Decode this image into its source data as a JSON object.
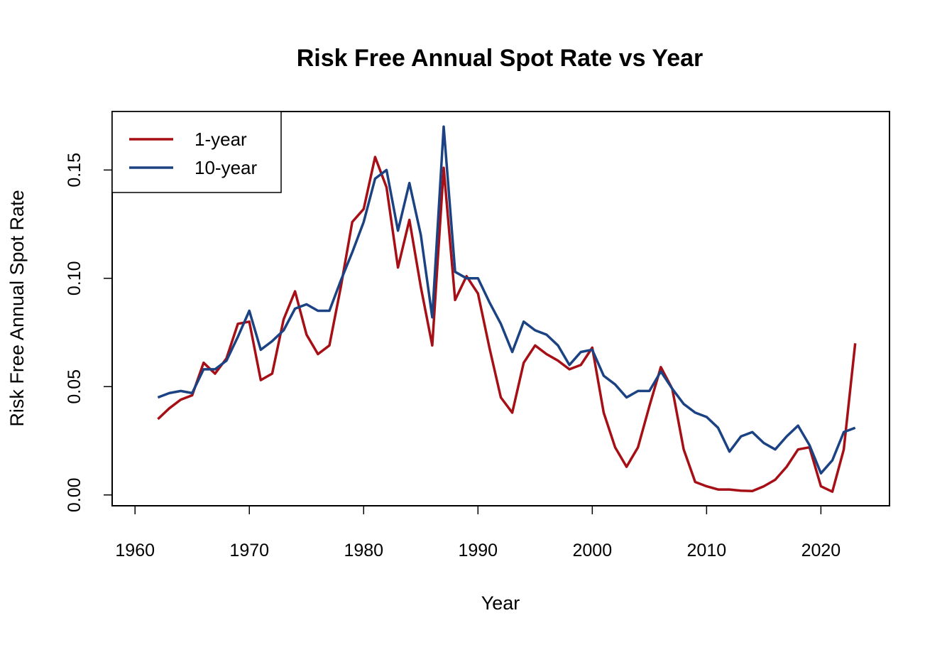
{
  "chart_data": {
    "type": "line",
    "title": "Risk Free Annual Spot Rate vs Year",
    "xlabel": "Year",
    "ylabel": "Risk Free Annual Spot Rate",
    "xlim": [
      1958,
      2026
    ],
    "ylim": [
      -0.005,
      0.177
    ],
    "xticks": [
      1960,
      1970,
      1980,
      1990,
      2000,
      2010,
      2020
    ],
    "xtick_labels": [
      "1960",
      "1970",
      "1980",
      "1990",
      "2000",
      "2010",
      "2020"
    ],
    "yticks": [
      0.0,
      0.05,
      0.1,
      0.15
    ],
    "ytick_labels": [
      "0.00",
      "0.05",
      "0.10",
      "0.15"
    ],
    "grid": false,
    "legend_position": "top-left",
    "x": [
      1962,
      1963,
      1964,
      1965,
      1966,
      1967,
      1968,
      1969,
      1970,
      1971,
      1972,
      1973,
      1974,
      1975,
      1976,
      1977,
      1978,
      1979,
      1980,
      1981,
      1982,
      1983,
      1984,
      1985,
      1986,
      1987,
      1988,
      1989,
      1990,
      1991,
      1992,
      1993,
      1994,
      1995,
      1996,
      1997,
      1998,
      1999,
      2000,
      2001,
      2002,
      2003,
      2004,
      2005,
      2006,
      2007,
      2008,
      2009,
      2010,
      2011,
      2012,
      2013,
      2014,
      2015,
      2016,
      2017,
      2018,
      2019,
      2020,
      2021,
      2022,
      2023
    ],
    "series": [
      {
        "name": "1-year",
        "color": "#A50F15",
        "values": [
          0.035,
          0.04,
          0.044,
          0.046,
          0.061,
          0.056,
          0.063,
          0.079,
          0.08,
          0.053,
          0.056,
          0.081,
          0.094,
          0.074,
          0.065,
          0.069,
          0.096,
          0.126,
          0.132,
          0.156,
          0.142,
          0.105,
          0.127,
          0.096,
          0.069,
          0.151,
          0.09,
          0.101,
          0.093,
          0.068,
          0.045,
          0.038,
          0.061,
          0.069,
          0.065,
          0.062,
          0.058,
          0.06,
          0.068,
          0.038,
          0.022,
          0.013,
          0.022,
          0.041,
          0.059,
          0.049,
          0.021,
          0.006,
          0.004,
          0.0025,
          0.0025,
          0.002,
          0.0018,
          0.004,
          0.007,
          0.013,
          0.021,
          0.022,
          0.004,
          0.0015,
          0.021,
          0.07
        ]
      },
      {
        "name": "10-year",
        "color": "#1B4282",
        "values": [
          0.045,
          0.047,
          0.048,
          0.047,
          0.058,
          0.058,
          0.062,
          0.073,
          0.085,
          0.067,
          0.071,
          0.076,
          0.086,
          0.088,
          0.085,
          0.085,
          0.099,
          0.112,
          0.126,
          0.146,
          0.15,
          0.122,
          0.144,
          0.12,
          0.082,
          0.17,
          0.103,
          0.1,
          0.1,
          0.089,
          0.079,
          0.066,
          0.08,
          0.076,
          0.074,
          0.069,
          0.06,
          0.066,
          0.067,
          0.055,
          0.051,
          0.045,
          0.048,
          0.048,
          0.057,
          0.049,
          0.042,
          0.038,
          0.036,
          0.031,
          0.02,
          0.027,
          0.029,
          0.024,
          0.021,
          0.027,
          0.032,
          0.023,
          0.01,
          0.016,
          0.029,
          0.031
        ]
      }
    ]
  }
}
